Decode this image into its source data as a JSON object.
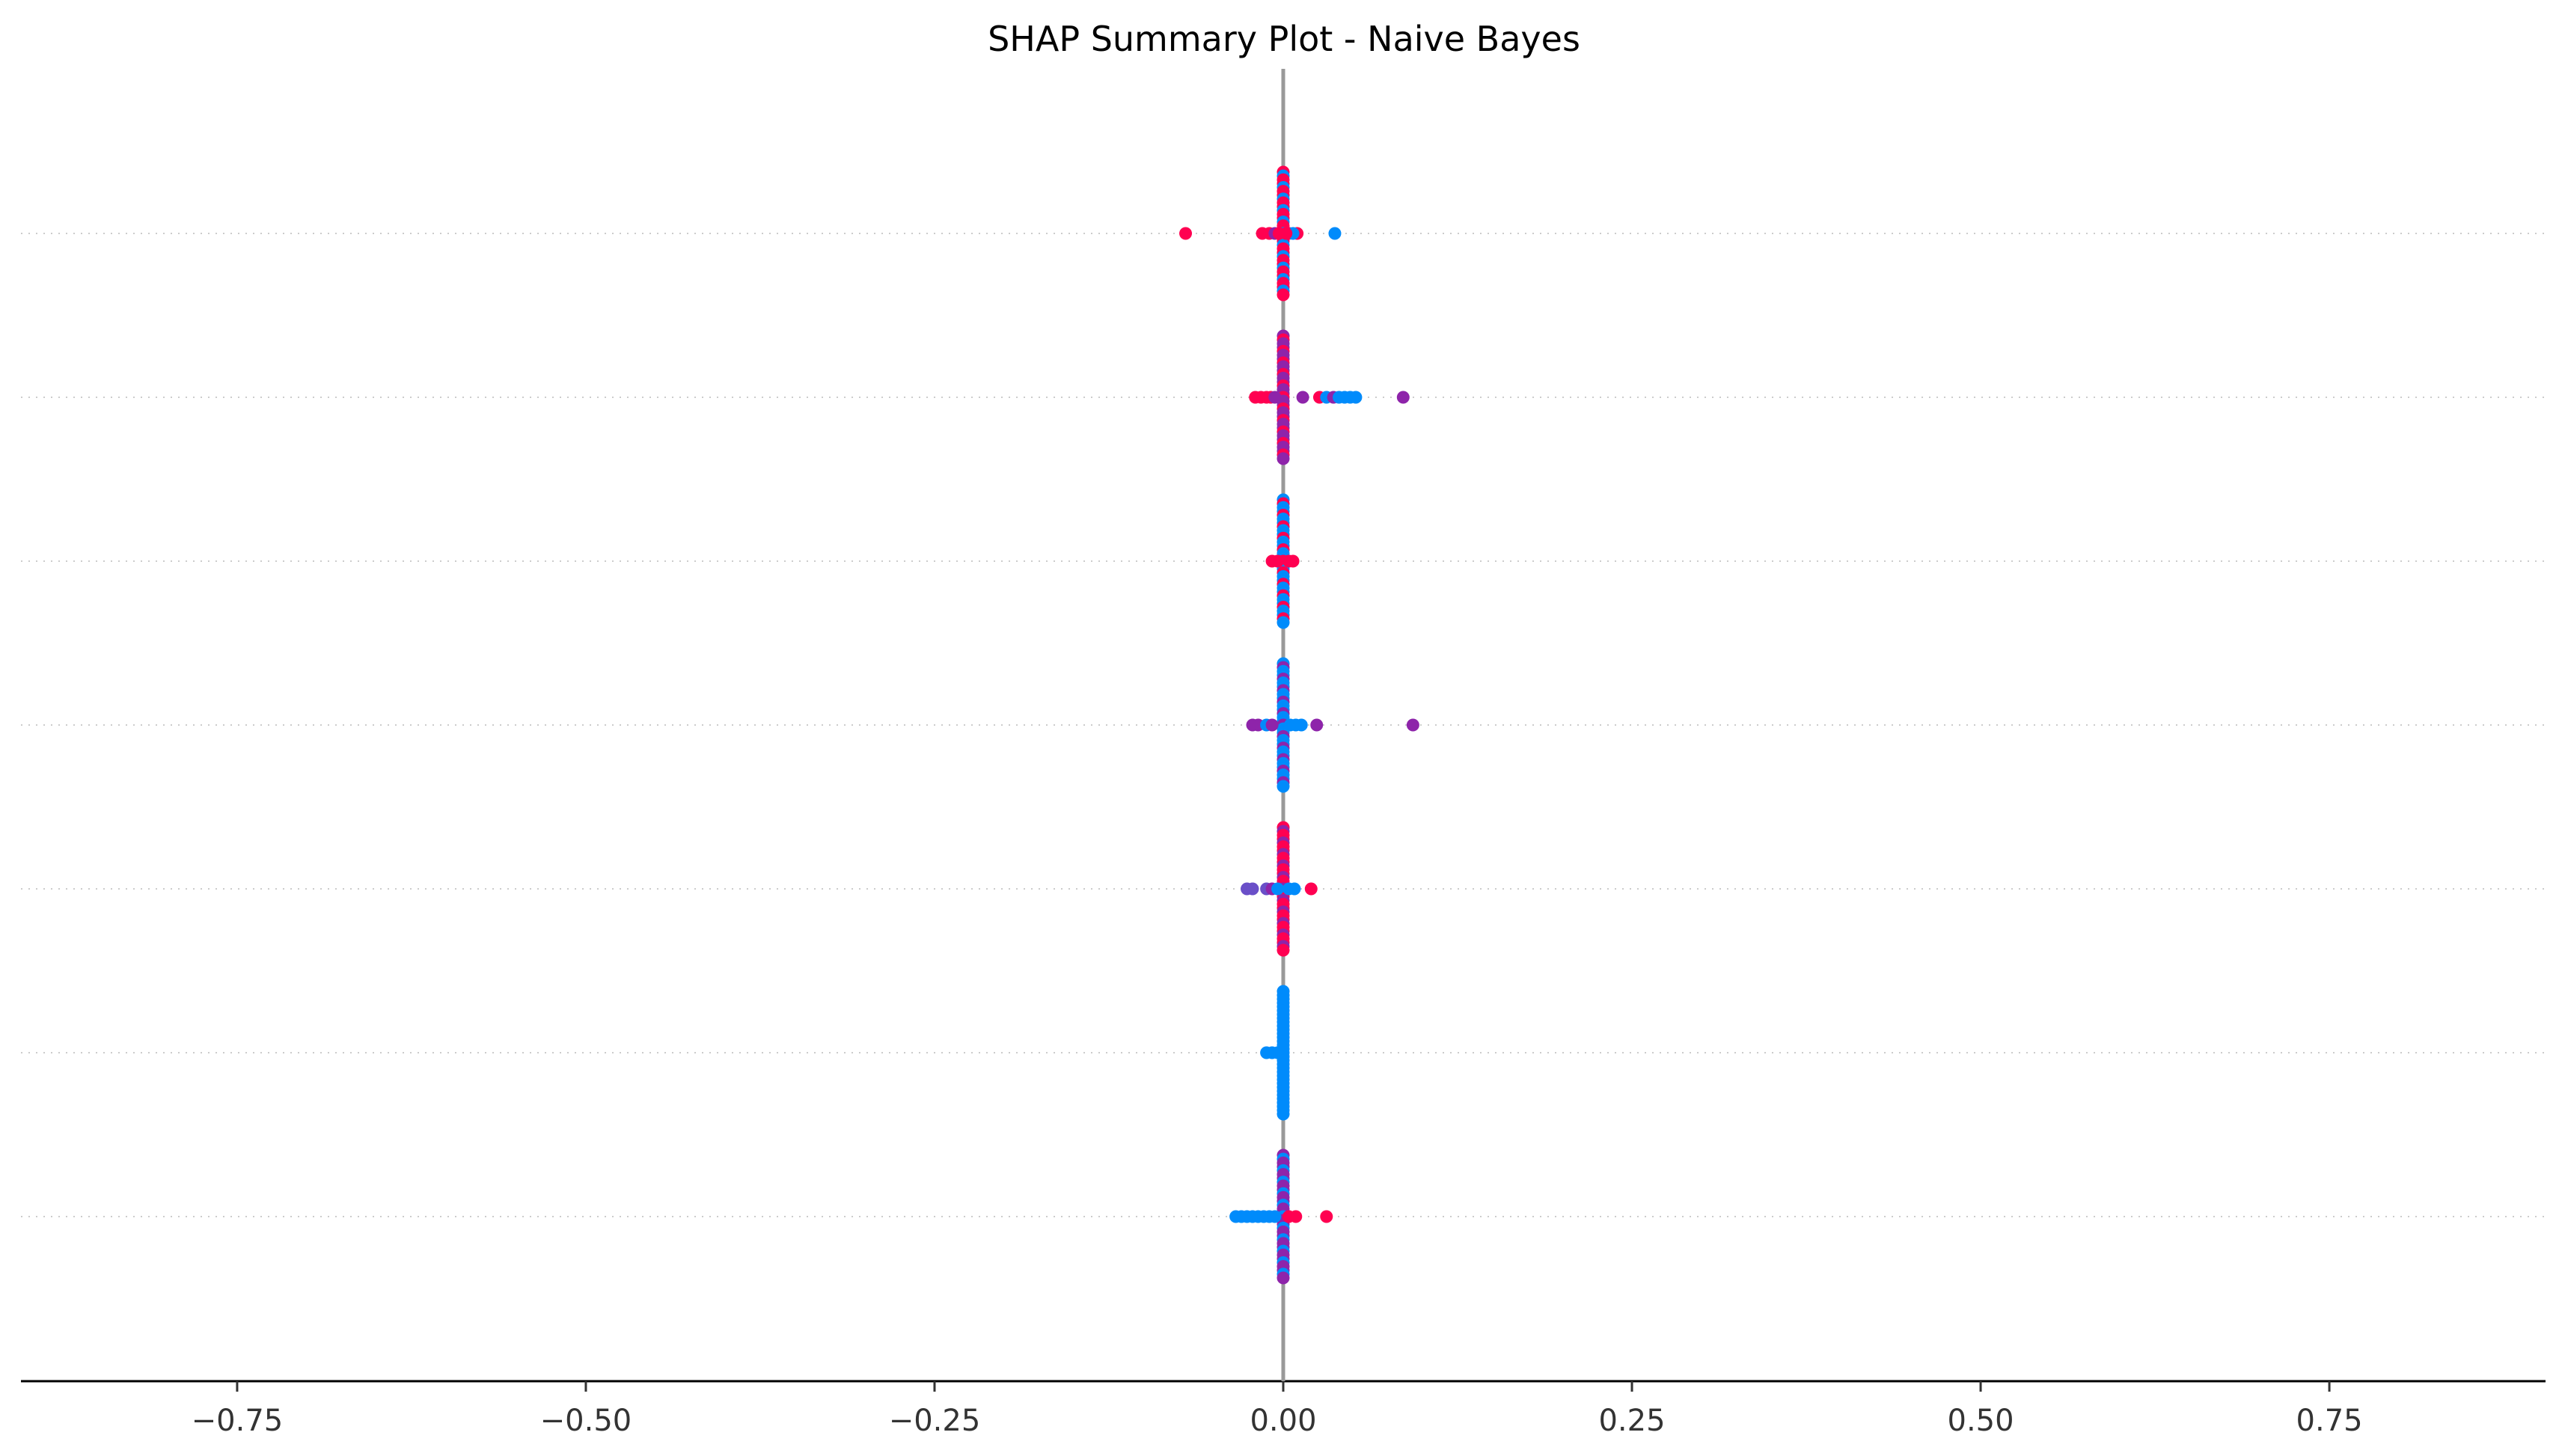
{
  "chart_data": {
    "type": "scatter",
    "title": "SHAP Summary Plot - Naive Bayes",
    "xlabel": "",
    "ylabel": "",
    "xlim": [
      -0.905,
      0.905
    ],
    "x_ticks": [
      -0.75,
      -0.5,
      -0.25,
      0.0,
      0.25,
      0.5,
      0.75
    ],
    "x_tick_labels": [
      "−0.75",
      "−0.50",
      "−0.25",
      "0.00",
      "0.25",
      "0.50",
      "0.75"
    ],
    "feature_labels_visible": false,
    "colorbar_visible": false,
    "grid": "dotted horizontal row guides",
    "zero_line": true,
    "colors": {
      "high": "#ff0051",
      "mid": "#8e24aa",
      "midlow": "#6a4fc8",
      "low": "#008bfb"
    },
    "rows": [
      {
        "row": 1,
        "points": [
          {
            "x": -0.07,
            "v": "high"
          },
          {
            "x": 0.037,
            "v": "low"
          },
          {
            "x": 0.01,
            "v": "high"
          },
          {
            "x": -0.015,
            "v": "high"
          },
          {
            "x": -0.01,
            "v": "high"
          },
          {
            "x": -0.006,
            "v": "mid"
          },
          {
            "x": 0.004,
            "v": "high"
          },
          {
            "x": 0.007,
            "v": "low"
          },
          {
            "x": -0.003,
            "v": "high"
          },
          {
            "x": 0.002,
            "v": "high"
          }
        ],
        "column": {
          "range": [
            -0.8,
            0.8
          ],
          "v": "high",
          "alt": "low"
        }
      },
      {
        "row": 2,
        "points": [
          {
            "x": -0.02,
            "v": "high"
          },
          {
            "x": -0.016,
            "v": "high"
          },
          {
            "x": -0.012,
            "v": "high"
          },
          {
            "x": -0.009,
            "v": "high"
          },
          {
            "x": -0.006,
            "v": "mid"
          },
          {
            "x": 0.014,
            "v": "mid"
          },
          {
            "x": 0.026,
            "v": "high"
          },
          {
            "x": 0.031,
            "v": "low"
          },
          {
            "x": 0.036,
            "v": "mid"
          },
          {
            "x": 0.04,
            "v": "low"
          },
          {
            "x": 0.044,
            "v": "low"
          },
          {
            "x": 0.048,
            "v": "low"
          },
          {
            "x": 0.052,
            "v": "low"
          },
          {
            "x": 0.086,
            "v": "mid"
          }
        ],
        "column": {
          "range": [
            -0.8,
            0.8
          ],
          "v": "mid",
          "alt": "high"
        }
      },
      {
        "row": 3,
        "points": [
          {
            "x": -0.008,
            "v": "high"
          },
          {
            "x": -0.004,
            "v": "high"
          },
          {
            "x": 0.004,
            "v": "high"
          },
          {
            "x": 0.007,
            "v": "high"
          }
        ],
        "column": {
          "range": [
            -0.8,
            0.8
          ],
          "v": "low",
          "alt": "high"
        }
      },
      {
        "row": 4,
        "points": [
          {
            "x": -0.022,
            "v": "mid"
          },
          {
            "x": -0.018,
            "v": "mid"
          },
          {
            "x": -0.012,
            "v": "low"
          },
          {
            "x": -0.008,
            "v": "mid"
          },
          {
            "x": 0.005,
            "v": "low"
          },
          {
            "x": 0.009,
            "v": "low"
          },
          {
            "x": 0.013,
            "v": "low"
          },
          {
            "x": 0.024,
            "v": "mid"
          },
          {
            "x": 0.093,
            "v": "mid"
          }
        ],
        "column": {
          "range": [
            -0.8,
            0.8
          ],
          "v": "low",
          "alt": "mid"
        }
      },
      {
        "row": 5,
        "points": [
          {
            "x": -0.026,
            "v": "midlow"
          },
          {
            "x": -0.022,
            "v": "midlow"
          },
          {
            "x": -0.012,
            "v": "midlow"
          },
          {
            "x": -0.008,
            "v": "mid"
          },
          {
            "x": -0.004,
            "v": "low"
          },
          {
            "x": 0.004,
            "v": "low"
          },
          {
            "x": 0.008,
            "v": "low"
          },
          {
            "x": 0.02,
            "v": "high"
          }
        ],
        "column": {
          "range": [
            -0.8,
            0.8
          ],
          "v": "high",
          "alt": "mid"
        }
      },
      {
        "row": 6,
        "points": [
          {
            "x": -0.012,
            "v": "low"
          },
          {
            "x": -0.008,
            "v": "low"
          },
          {
            "x": -0.004,
            "v": "low"
          }
        ],
        "column": {
          "range": [
            -0.8,
            0.8
          ],
          "v": "low",
          "alt": "low"
        }
      },
      {
        "row": 7,
        "points": [
          {
            "x": -0.034,
            "v": "low"
          },
          {
            "x": -0.03,
            "v": "low"
          },
          {
            "x": -0.026,
            "v": "low"
          },
          {
            "x": -0.022,
            "v": "low"
          },
          {
            "x": -0.018,
            "v": "low"
          },
          {
            "x": -0.014,
            "v": "low"
          },
          {
            "x": -0.01,
            "v": "low"
          },
          {
            "x": -0.006,
            "v": "low"
          },
          {
            "x": 0.004,
            "v": "high"
          },
          {
            "x": 0.009,
            "v": "high"
          },
          {
            "x": 0.031,
            "v": "high"
          }
        ],
        "column": {
          "range": [
            -0.8,
            0.8
          ],
          "v": "mid",
          "alt": "low"
        }
      }
    ]
  }
}
